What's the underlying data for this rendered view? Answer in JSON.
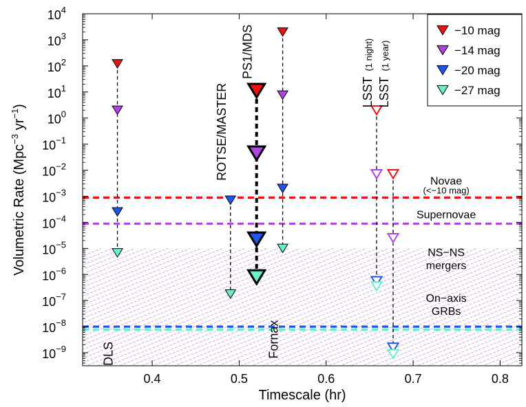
{
  "chart_data": {
    "type": "scatter",
    "xlabel": "Timescale  (hr)",
    "ylabel": {
      "main": "Volumetric Rate  (Mpc",
      "exp1": "−3",
      "mid": " yr",
      "exp2": "−1",
      "close": ")"
    },
    "xlim": [
      0.32,
      0.825
    ],
    "ylim_log10": [
      -9.5,
      4
    ],
    "x_ticks": [
      {
        "value": 0.4,
        "label": "0.4"
      },
      {
        "value": 0.5,
        "label": "0.5"
      },
      {
        "value": 0.6,
        "label": "0.6"
      },
      {
        "value": 0.7,
        "label": "0.7"
      },
      {
        "value": 0.8,
        "label": "0.8"
      }
    ],
    "y_ticks": [
      {
        "exp": 4,
        "base": "10",
        "sup": "4"
      },
      {
        "exp": 3,
        "base": "10",
        "sup": "3"
      },
      {
        "exp": 2,
        "base": "10",
        "sup": "2"
      },
      {
        "exp": 1,
        "base": "10",
        "sup": "1"
      },
      {
        "exp": 0,
        "base": "10",
        "sup": "0"
      },
      {
        "exp": -1,
        "base": "10",
        "sup": "−1"
      },
      {
        "exp": -2,
        "base": "10",
        "sup": "−2"
      },
      {
        "exp": -3,
        "base": "10",
        "sup": "−3"
      },
      {
        "exp": -4,
        "base": "10",
        "sup": "−4"
      },
      {
        "exp": -5,
        "base": "10",
        "sup": "−5"
      },
      {
        "exp": -6,
        "base": "10",
        "sup": "−6"
      },
      {
        "exp": -7,
        "base": "10",
        "sup": "−7"
      },
      {
        "exp": -8,
        "base": "10",
        "sup": "−8"
      },
      {
        "exp": -9,
        "base": "10",
        "sup": "−9"
      }
    ],
    "legend": [
      {
        "label": "−10 mag",
        "color": "#ee1111"
      },
      {
        "label": "−14 mag",
        "color": "#b042e8"
      },
      {
        "label": "−20 mag",
        "color": "#2255ee"
      },
      {
        "label": "−27 mag",
        "color": "#66f0cc"
      }
    ],
    "reference_lines": [
      {
        "name": "novae",
        "log10_rate": -3.05,
        "color": "#ee1111"
      },
      {
        "name": "supernovae",
        "log10_rate": -4.05,
        "color": "#b042e8"
      },
      {
        "name": "grb",
        "log10_rate": -8.0,
        "color": "#2255ee"
      },
      {
        "name": "grb-cyan",
        "log10_rate": -8.12,
        "color": "#66f0cc"
      }
    ],
    "shaded_region": {
      "name": "ns-ns-mergers",
      "log10_min": -9.5,
      "log10_max": -5.0,
      "color": "#b042e8"
    },
    "region_labels": [
      {
        "name": "novae",
        "lines": [
          "Novae"
        ],
        "x": 0.738,
        "log10_rate": -2.55,
        "small": false
      },
      {
        "name": "novae-mag",
        "lines": [
          "(<−10 mag)"
        ],
        "x": 0.738,
        "log10_rate": -2.9,
        "small": true
      },
      {
        "name": "supernovae",
        "lines": [
          "Supernovae"
        ],
        "x": 0.738,
        "log10_rate": -3.85,
        "small": false
      },
      {
        "name": "ns-ns-mergers",
        "lines": [
          "NS−NS",
          "mergers"
        ],
        "x": 0.738,
        "log10_rate": -5.3,
        "small": false
      },
      {
        "name": "grbs",
        "lines": [
          "On−axis",
          "GRBs"
        ],
        "x": 0.738,
        "log10_rate": -7.05,
        "small": false
      }
    ],
    "surveys": [
      {
        "name": "DLS",
        "label": "DLS",
        "x": 0.36,
        "marker": "filled",
        "size": "small",
        "line_width": 1.3,
        "label_log10": -9.5,
        "label_anchor": "start",
        "label_dx": 7,
        "values_log10": [
          2.08,
          0.3,
          -3.6,
          -5.17
        ]
      },
      {
        "name": "ROTSE/MASTER",
        "label": "ROTSE/MASTER",
        "x": 0.49,
        "marker": "filled",
        "size": "small",
        "line_width": 1.3,
        "label_log10": -2.4,
        "label_anchor": "start",
        "label_dx": 7,
        "values_log10": [
          null,
          null,
          -3.15,
          -6.75
        ]
      },
      {
        "name": "PS1/MDS",
        "label": "PS1/MDS",
        "x": 0.52,
        "marker": "filled",
        "size": "large",
        "line_width": 4,
        "label_log10": 1.5,
        "label_anchor": "start",
        "label_dx": 7,
        "values_log10": [
          1.05,
          -1.35,
          -4.65,
          -6.1
        ]
      },
      {
        "name": "Fornax",
        "label": "Fornax",
        "x": 0.55,
        "marker": "filled",
        "size": "small",
        "line_width": 1.3,
        "label_log10": -7.75,
        "label_anchor": "end",
        "label_dx": 7,
        "values_log10": [
          3.3,
          0.88,
          -2.7,
          -5.0
        ]
      },
      {
        "name": "LSST-1-night",
        "label": "LSST",
        "sublabel": "(1 night)",
        "x": 0.658,
        "marker": "open",
        "size": "small",
        "line_width": 1.3,
        "label_log10": 0.4,
        "label_anchor": "start",
        "label_dx": 7,
        "values_log10": [
          0.3,
          -2.15,
          -6.25,
          -6.45
        ]
      },
      {
        "name": "LSST-1-year",
        "label": "LSST",
        "sublabel": "(1 year)",
        "x": 0.677,
        "marker": "open",
        "size": "small",
        "line_width": 1.3,
        "label_log10": 0.4,
        "label_anchor": "start",
        "label_dx": 7,
        "values_log10": [
          -2.15,
          -4.6,
          -8.8,
          -9.05
        ]
      }
    ]
  }
}
